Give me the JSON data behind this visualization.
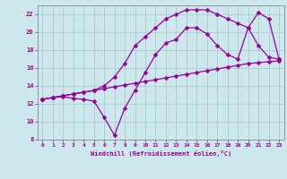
{
  "xlabel": "Windchill (Refroidissement éolien,°C)",
  "bg_color": "#cce8ec",
  "line_color": "#990099",
  "grid_color": "#aacccc",
  "xlim": [
    -0.5,
    23.5
  ],
  "ylim": [
    8,
    23
  ],
  "xticks": [
    0,
    1,
    2,
    3,
    4,
    5,
    6,
    7,
    8,
    9,
    10,
    11,
    12,
    13,
    14,
    15,
    16,
    17,
    18,
    19,
    20,
    21,
    22,
    23
  ],
  "yticks": [
    8,
    10,
    12,
    14,
    16,
    18,
    20,
    22
  ],
  "line1_x": [
    0,
    1,
    2,
    3,
    4,
    5,
    6,
    7,
    8,
    9,
    10,
    11,
    12,
    13,
    14,
    15,
    16,
    17,
    18,
    19,
    20,
    21,
    22,
    23
  ],
  "line1_y": [
    12.5,
    12.7,
    12.9,
    13.1,
    13.3,
    13.5,
    13.7,
    13.9,
    14.1,
    14.3,
    14.5,
    14.7,
    14.9,
    15.1,
    15.3,
    15.5,
    15.7,
    15.9,
    16.1,
    16.3,
    16.5,
    16.6,
    16.7,
    16.8
  ],
  "line2_x": [
    0,
    1,
    2,
    3,
    4,
    5,
    6,
    7,
    8,
    9,
    10,
    11,
    12,
    13,
    14,
    15,
    16,
    17,
    18,
    19,
    20,
    21,
    22,
    23
  ],
  "line2_y": [
    12.5,
    12.7,
    12.8,
    12.6,
    12.5,
    12.3,
    10.5,
    8.5,
    11.5,
    13.5,
    15.5,
    17.5,
    18.8,
    19.2,
    20.5,
    20.5,
    19.8,
    18.5,
    17.5,
    17.0,
    20.5,
    18.5,
    17.2,
    17.0
  ],
  "line3_x": [
    0,
    1,
    2,
    3,
    4,
    5,
    6,
    7,
    8,
    9,
    10,
    11,
    12,
    13,
    14,
    15,
    16,
    17,
    18,
    19,
    20,
    21,
    22,
    23
  ],
  "line3_y": [
    12.5,
    12.7,
    12.9,
    13.1,
    13.3,
    13.5,
    14.0,
    15.0,
    16.5,
    18.5,
    19.5,
    20.5,
    21.5,
    22.0,
    22.5,
    22.5,
    22.5,
    22.0,
    21.5,
    21.0,
    20.5,
    22.2,
    21.5,
    17.0
  ]
}
